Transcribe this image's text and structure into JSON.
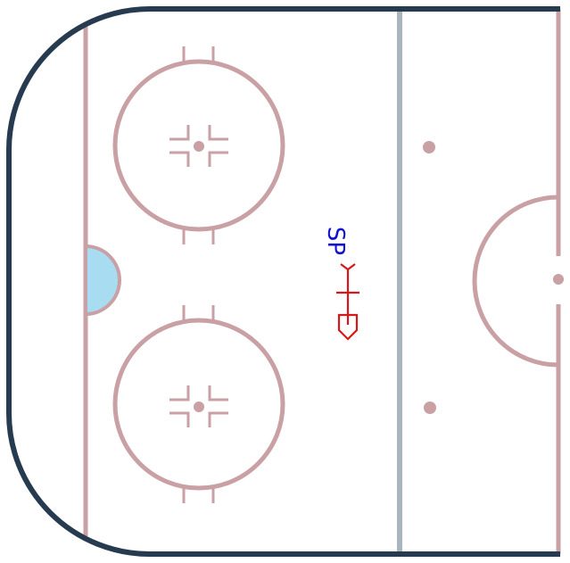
{
  "rink": {
    "half": "defensive-zone-left",
    "colors": {
      "boards": "#263a50",
      "lines": "#c9a0a4",
      "center_line": "#a9b6bf",
      "crease": "#a8dcf0",
      "ice": "#ffffff"
    },
    "faceoff_circles": [
      "upper-left",
      "lower-left"
    ],
    "neutral_dots": [
      "upper",
      "lower"
    ]
  },
  "markers": {
    "text_label": "SP",
    "text_color": "#1010d0",
    "icon_name": "hockey-stick-icon",
    "icon_color": "#d81818"
  }
}
